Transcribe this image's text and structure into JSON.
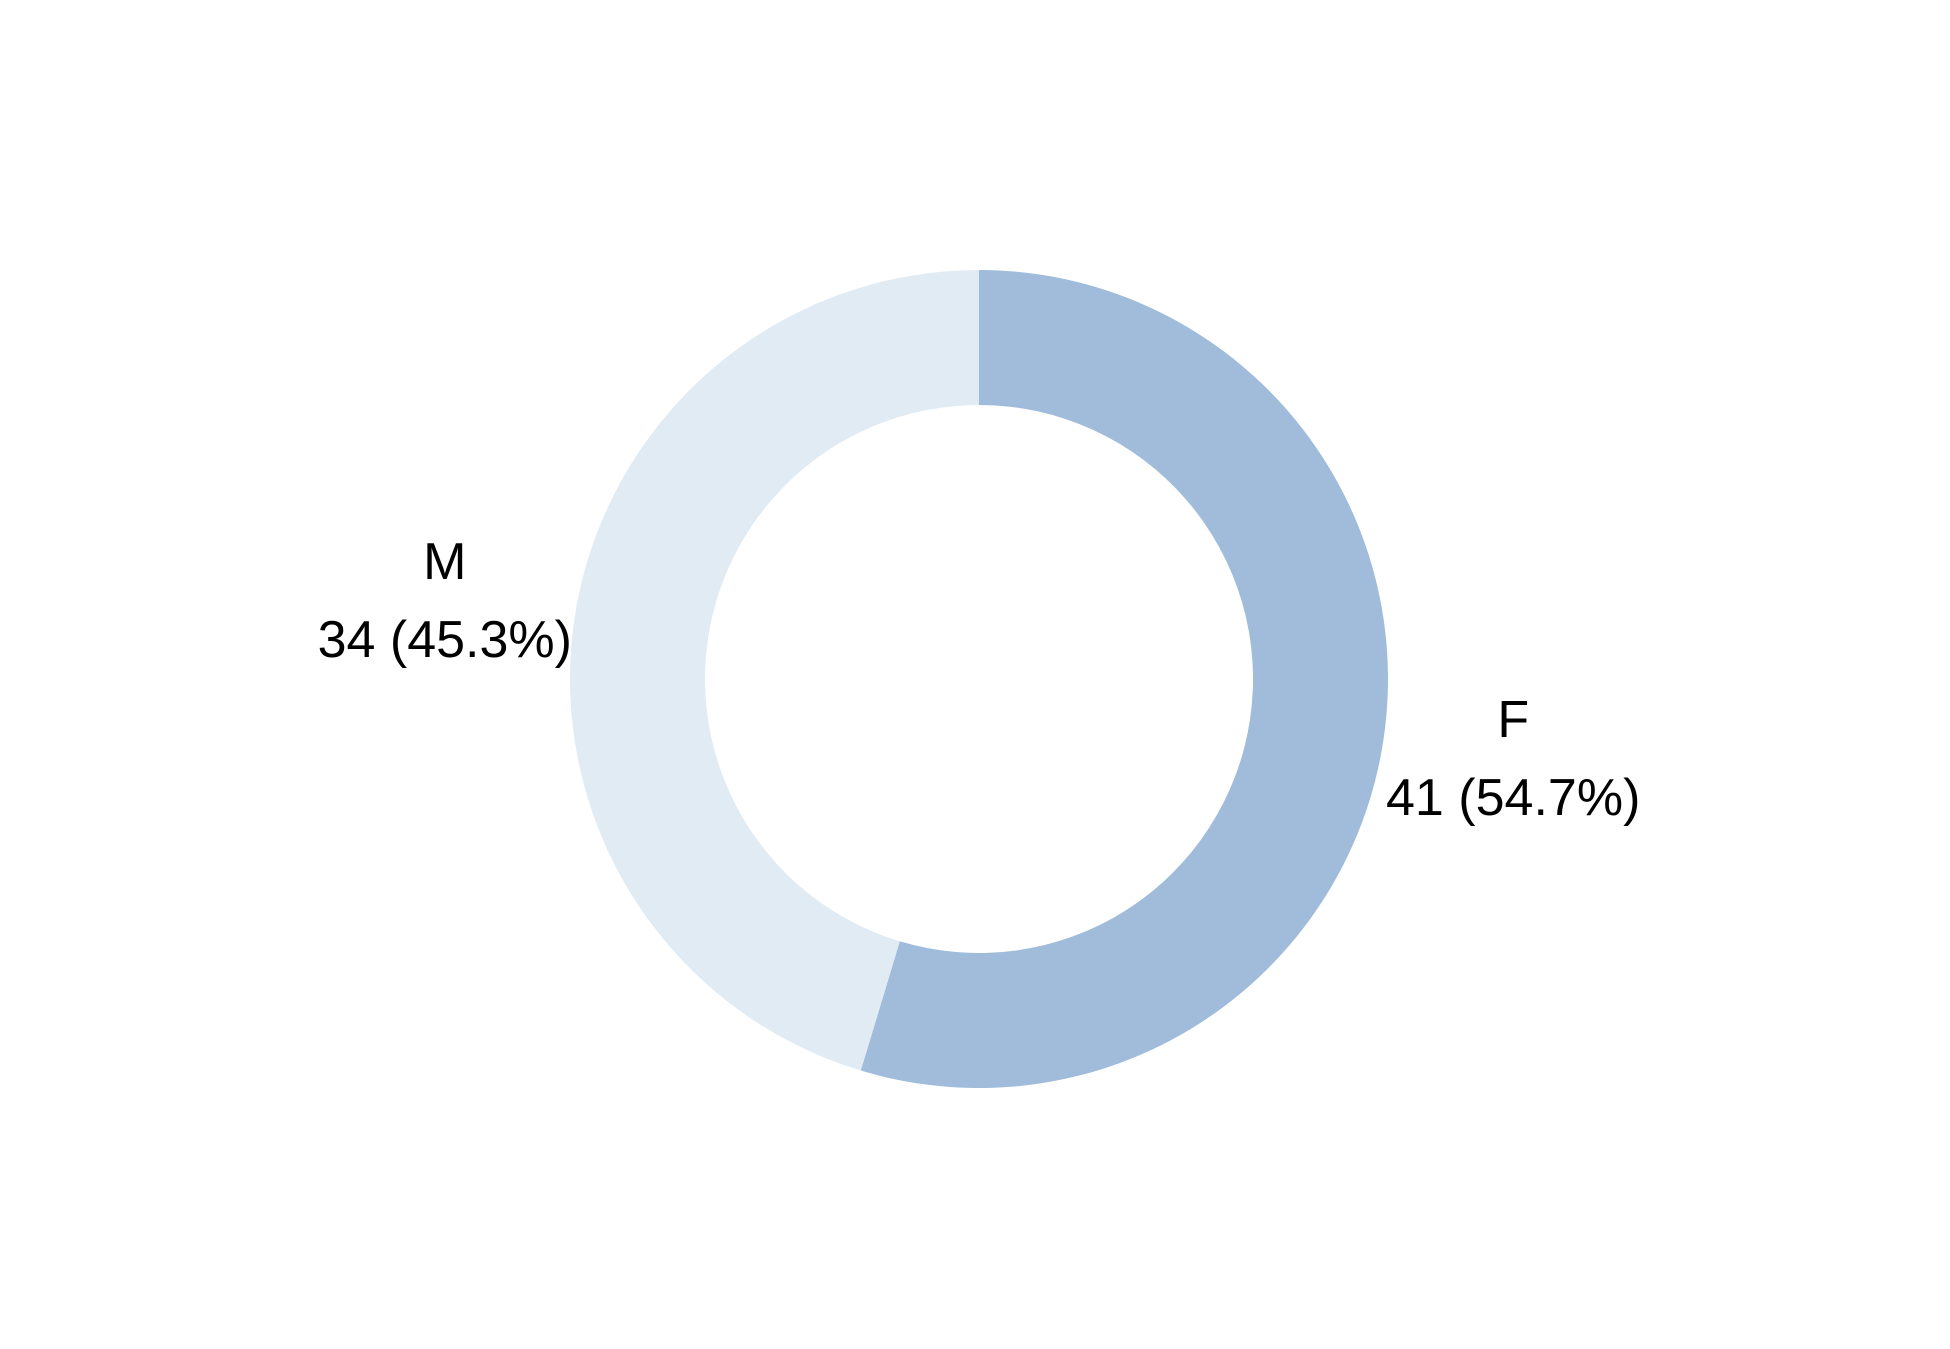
{
  "chart_data": {
    "type": "pie",
    "variant": "donut",
    "title": "",
    "slices": [
      {
        "category": "F",
        "count": 41,
        "percent": 54.7,
        "value_label": "41 (54.7%)",
        "color": "#a0bcda"
      },
      {
        "category": "M",
        "count": 34,
        "percent": 45.3,
        "value_label": "34 (45.3%)",
        "color": "#e0ebf4"
      }
    ],
    "start_angle": "12 o'clock",
    "direction": "clockwise",
    "legend": "none"
  }
}
